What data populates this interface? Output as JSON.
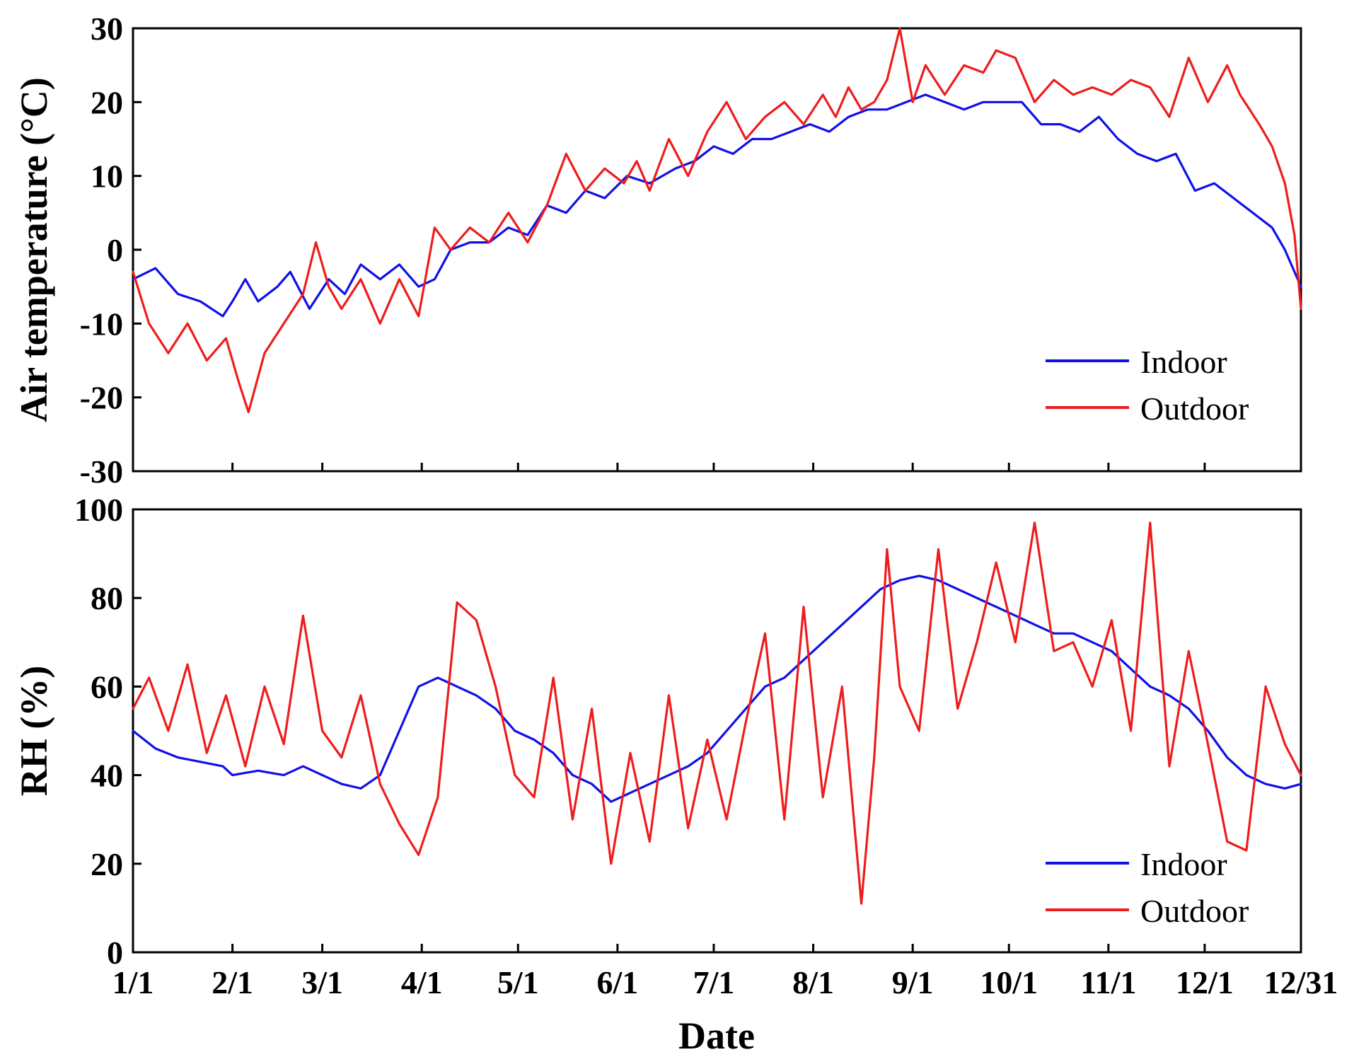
{
  "chart_data": [
    {
      "type": "line",
      "ylabel": "Air temperature (°C)",
      "xlabel": "",
      "ylim": [
        -30,
        30
      ],
      "yticks": [
        -30,
        -20,
        -10,
        0,
        10,
        20,
        30
      ],
      "xlim": [
        1,
        365
      ],
      "legend_position": "bottom-right",
      "series": [
        {
          "name": "Indoor",
          "color": "#1010e8",
          "points": [
            [
              1,
              -4
            ],
            [
              8,
              -2.5
            ],
            [
              15,
              -6
            ],
            [
              22,
              -7
            ],
            [
              29,
              -9
            ],
            [
              32,
              -7
            ],
            [
              36,
              -4
            ],
            [
              40,
              -7
            ],
            [
              46,
              -5
            ],
            [
              50,
              -3
            ],
            [
              56,
              -8
            ],
            [
              62,
              -4
            ],
            [
              67,
              -6
            ],
            [
              72,
              -2
            ],
            [
              78,
              -4
            ],
            [
              84,
              -2
            ],
            [
              90,
              -5
            ],
            [
              95,
              -4
            ],
            [
              100,
              0
            ],
            [
              106,
              1
            ],
            [
              112,
              1
            ],
            [
              118,
              3
            ],
            [
              124,
              2
            ],
            [
              130,
              6
            ],
            [
              136,
              5
            ],
            [
              142,
              8
            ],
            [
              148,
              7
            ],
            [
              155,
              10
            ],
            [
              162,
              9
            ],
            [
              170,
              11
            ],
            [
              176,
              12
            ],
            [
              182,
              14
            ],
            [
              188,
              13
            ],
            [
              194,
              15
            ],
            [
              200,
              15
            ],
            [
              206,
              16
            ],
            [
              212,
              17
            ],
            [
              218,
              16
            ],
            [
              224,
              18
            ],
            [
              230,
              19
            ],
            [
              236,
              19
            ],
            [
              242,
              20
            ],
            [
              248,
              21
            ],
            [
              254,
              20
            ],
            [
              260,
              19
            ],
            [
              266,
              20
            ],
            [
              272,
              20
            ],
            [
              278,
              20
            ],
            [
              284,
              17
            ],
            [
              290,
              17
            ],
            [
              296,
              16
            ],
            [
              302,
              18
            ],
            [
              308,
              15
            ],
            [
              314,
              13
            ],
            [
              320,
              12
            ],
            [
              326,
              13
            ],
            [
              332,
              8
            ],
            [
              338,
              9
            ],
            [
              344,
              7
            ],
            [
              350,
              5
            ],
            [
              356,
              3
            ],
            [
              360,
              0
            ],
            [
              365,
              -5
            ]
          ]
        },
        {
          "name": "Outdoor",
          "color": "#ee1c1c",
          "points": [
            [
              1,
              -3
            ],
            [
              6,
              -10
            ],
            [
              12,
              -14
            ],
            [
              18,
              -10
            ],
            [
              24,
              -15
            ],
            [
              30,
              -12
            ],
            [
              34,
              -18
            ],
            [
              37,
              -22
            ],
            [
              42,
              -14
            ],
            [
              48,
              -10
            ],
            [
              54,
              -6
            ],
            [
              58,
              1
            ],
            [
              62,
              -5
            ],
            [
              66,
              -8
            ],
            [
              72,
              -4
            ],
            [
              78,
              -10
            ],
            [
              84,
              -4
            ],
            [
              90,
              -9
            ],
            [
              95,
              3
            ],
            [
              100,
              0
            ],
            [
              106,
              3
            ],
            [
              112,
              1
            ],
            [
              118,
              5
            ],
            [
              124,
              1
            ],
            [
              130,
              6
            ],
            [
              136,
              13
            ],
            [
              142,
              8
            ],
            [
              148,
              11
            ],
            [
              154,
              9
            ],
            [
              158,
              12
            ],
            [
              162,
              8
            ],
            [
              168,
              15
            ],
            [
              174,
              10
            ],
            [
              180,
              16
            ],
            [
              186,
              20
            ],
            [
              192,
              15
            ],
            [
              198,
              18
            ],
            [
              204,
              20
            ],
            [
              210,
              17
            ],
            [
              216,
              21
            ],
            [
              220,
              18
            ],
            [
              224,
              22
            ],
            [
              228,
              19
            ],
            [
              232,
              20
            ],
            [
              236,
              23
            ],
            [
              240,
              30
            ],
            [
              244,
              20
            ],
            [
              248,
              25
            ],
            [
              254,
              21
            ],
            [
              260,
              25
            ],
            [
              266,
              24
            ],
            [
              270,
              27
            ],
            [
              276,
              26
            ],
            [
              282,
              20
            ],
            [
              288,
              23
            ],
            [
              294,
              21
            ],
            [
              300,
              22
            ],
            [
              306,
              21
            ],
            [
              312,
              23
            ],
            [
              318,
              22
            ],
            [
              324,
              18
            ],
            [
              330,
              26
            ],
            [
              336,
              20
            ],
            [
              342,
              25
            ],
            [
              346,
              21
            ],
            [
              352,
              17
            ],
            [
              356,
              14
            ],
            [
              360,
              9
            ],
            [
              363,
              2
            ],
            [
              365,
              -8
            ]
          ]
        }
      ]
    },
    {
      "type": "line",
      "ylabel": "RH (%)",
      "xlabel": "Date",
      "ylim": [
        0,
        100
      ],
      "yticks": [
        0,
        20,
        40,
        60,
        80,
        100
      ],
      "xlim": [
        1,
        365
      ],
      "xticks": [
        1,
        32,
        60,
        91,
        121,
        152,
        182,
        213,
        244,
        274,
        305,
        335,
        365
      ],
      "xtick_labels": [
        "1/1",
        "2/1",
        "3/1",
        "4/1",
        "5/1",
        "6/1",
        "7/1",
        "8/1",
        "9/1",
        "10/1",
        "11/1",
        "12/1",
        "12/31"
      ],
      "legend_position": "bottom-right",
      "series": [
        {
          "name": "Indoor",
          "color": "#1010e8",
          "points": [
            [
              1,
              50
            ],
            [
              8,
              46
            ],
            [
              15,
              44
            ],
            [
              22,
              43
            ],
            [
              29,
              42
            ],
            [
              32,
              40
            ],
            [
              40,
              41
            ],
            [
              48,
              40
            ],
            [
              54,
              42
            ],
            [
              60,
              40
            ],
            [
              66,
              38
            ],
            [
              72,
              37
            ],
            [
              78,
              40
            ],
            [
              84,
              50
            ],
            [
              90,
              60
            ],
            [
              96,
              62
            ],
            [
              102,
              60
            ],
            [
              108,
              58
            ],
            [
              114,
              55
            ],
            [
              120,
              50
            ],
            [
              126,
              48
            ],
            [
              132,
              45
            ],
            [
              138,
              40
            ],
            [
              144,
              38
            ],
            [
              150,
              34
            ],
            [
              156,
              36
            ],
            [
              162,
              38
            ],
            [
              168,
              40
            ],
            [
              174,
              42
            ],
            [
              180,
              45
            ],
            [
              186,
              50
            ],
            [
              192,
              55
            ],
            [
              198,
              60
            ],
            [
              204,
              62
            ],
            [
              210,
              66
            ],
            [
              216,
              70
            ],
            [
              222,
              74
            ],
            [
              228,
              78
            ],
            [
              234,
              82
            ],
            [
              240,
              84
            ],
            [
              246,
              85
            ],
            [
              252,
              84
            ],
            [
              258,
              82
            ],
            [
              264,
              80
            ],
            [
              270,
              78
            ],
            [
              276,
              76
            ],
            [
              282,
              74
            ],
            [
              288,
              72
            ],
            [
              294,
              72
            ],
            [
              300,
              70
            ],
            [
              306,
              68
            ],
            [
              312,
              64
            ],
            [
              318,
              60
            ],
            [
              324,
              58
            ],
            [
              330,
              55
            ],
            [
              336,
              50
            ],
            [
              342,
              44
            ],
            [
              348,
              40
            ],
            [
              354,
              38
            ],
            [
              360,
              37
            ],
            [
              365,
              38
            ]
          ]
        },
        {
          "name": "Outdoor",
          "color": "#ee1c1c",
          "points": [
            [
              1,
              55
            ],
            [
              6,
              62
            ],
            [
              12,
              50
            ],
            [
              18,
              65
            ],
            [
              24,
              45
            ],
            [
              30,
              58
            ],
            [
              36,
              42
            ],
            [
              42,
              60
            ],
            [
              48,
              47
            ],
            [
              54,
              76
            ],
            [
              60,
              50
            ],
            [
              66,
              44
            ],
            [
              72,
              58
            ],
            [
              78,
              38
            ],
            [
              84,
              29
            ],
            [
              90,
              22
            ],
            [
              96,
              35
            ],
            [
              102,
              79
            ],
            [
              108,
              75
            ],
            [
              114,
              60
            ],
            [
              120,
              40
            ],
            [
              126,
              35
            ],
            [
              132,
              62
            ],
            [
              138,
              30
            ],
            [
              144,
              55
            ],
            [
              150,
              20
            ],
            [
              156,
              45
            ],
            [
              162,
              25
            ],
            [
              168,
              58
            ],
            [
              174,
              28
            ],
            [
              180,
              48
            ],
            [
              186,
              30
            ],
            [
              192,
              52
            ],
            [
              198,
              72
            ],
            [
              204,
              30
            ],
            [
              210,
              78
            ],
            [
              216,
              35
            ],
            [
              222,
              60
            ],
            [
              228,
              11
            ],
            [
              232,
              44
            ],
            [
              236,
              91
            ],
            [
              240,
              60
            ],
            [
              246,
              50
            ],
            [
              252,
              91
            ],
            [
              258,
              55
            ],
            [
              264,
              70
            ],
            [
              270,
              88
            ],
            [
              276,
              70
            ],
            [
              282,
              97
            ],
            [
              288,
              68
            ],
            [
              294,
              70
            ],
            [
              300,
              60
            ],
            [
              306,
              75
            ],
            [
              312,
              50
            ],
            [
              318,
              97
            ],
            [
              324,
              42
            ],
            [
              330,
              68
            ],
            [
              336,
              47
            ],
            [
              342,
              25
            ],
            [
              348,
              23
            ],
            [
              354,
              60
            ],
            [
              360,
              47
            ],
            [
              365,
              40
            ]
          ]
        }
      ]
    }
  ]
}
